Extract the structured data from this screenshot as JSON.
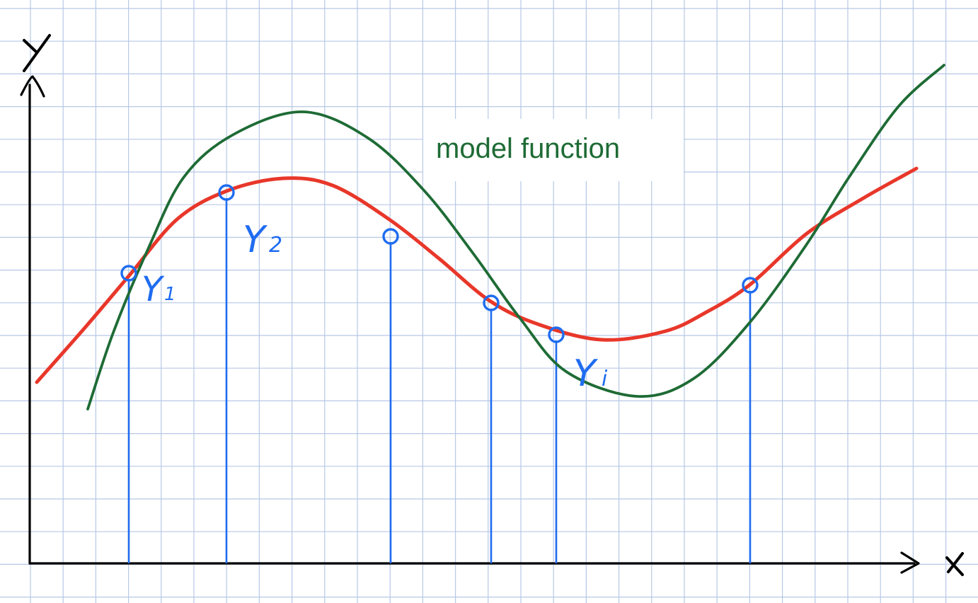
{
  "axes": {
    "x_label": "X",
    "y_label": "Y"
  },
  "model_label": "model function",
  "annotations": {
    "y1": "Y",
    "y1_sub": "1",
    "y2": "Y",
    "y2_sub": "2",
    "yi": "Y",
    "yi_sub": "i"
  },
  "colors": {
    "grid": "#b7c8e6",
    "axes": "#000000",
    "model_curve": "#1e6b35",
    "fit_curve": "#e8372a",
    "samples": "#1f6cf0",
    "label_text": "#1e6b35"
  }
}
